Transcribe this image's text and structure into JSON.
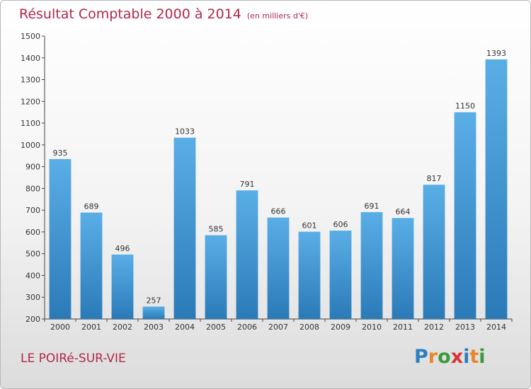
{
  "header": {
    "title": "Résultat Comptable 2000 à 2014",
    "subtitle": "(en milliers d'€)"
  },
  "footer": {
    "location": "LE POIRé-SUR-VIE",
    "logo_text": "Proxiti",
    "logo_colors": [
      "#2d7fc1",
      "#e8862a",
      "#3a9a3a",
      "#d33",
      "#2d7fc1",
      "#e8862a",
      "#3a9a3a"
    ]
  },
  "colors": {
    "bar_top": "#5aaee6",
    "bar_bottom": "#2a7ab8",
    "accent": "#b0284a"
  },
  "chart_data": {
    "type": "bar",
    "title": "Résultat Comptable 2000 à 2014",
    "xlabel": "",
    "ylabel": "",
    "categories": [
      "2000",
      "2001",
      "2002",
      "2003",
      "2004",
      "2005",
      "2006",
      "2007",
      "2008",
      "2009",
      "2010",
      "2011",
      "2012",
      "2013",
      "2014"
    ],
    "values": [
      935,
      689,
      496,
      257,
      1033,
      585,
      791,
      666,
      601,
      606,
      691,
      664,
      817,
      1150,
      1393
    ],
    "ylim": [
      200,
      1500
    ],
    "yticks": [
      200,
      300,
      400,
      500,
      600,
      700,
      800,
      900,
      1000,
      1100,
      1200,
      1300,
      1400,
      1500
    ],
    "grid": false,
    "legend": "none"
  }
}
